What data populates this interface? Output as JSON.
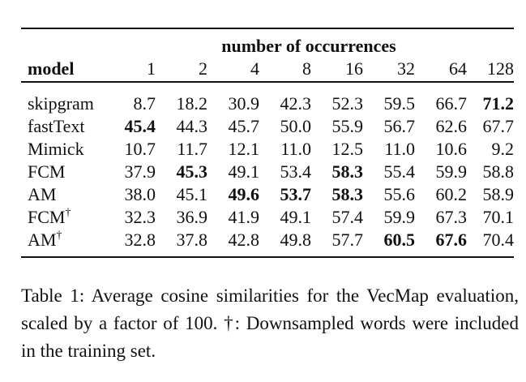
{
  "table": {
    "group_header": "number of occurrences",
    "model_header": "model",
    "columns": [
      "1",
      "2",
      "4",
      "8",
      "16",
      "32",
      "64",
      "128"
    ],
    "rows": [
      {
        "model": "skipgram",
        "dagger": "",
        "values": [
          "8.7",
          "18.2",
          "30.9",
          "42.3",
          "52.3",
          "59.5",
          "66.7",
          "71.2"
        ],
        "bold": [
          false,
          false,
          false,
          false,
          false,
          false,
          false,
          true
        ]
      },
      {
        "model": "fastText",
        "dagger": "",
        "values": [
          "45.4",
          "44.3",
          "45.7",
          "50.0",
          "55.9",
          "56.7",
          "62.6",
          "67.7"
        ],
        "bold": [
          true,
          false,
          false,
          false,
          false,
          false,
          false,
          false
        ]
      },
      {
        "model": "Mimick",
        "dagger": "",
        "values": [
          "10.7",
          "11.7",
          "12.1",
          "11.0",
          "12.5",
          "11.0",
          "10.6",
          "9.2"
        ],
        "bold": [
          false,
          false,
          false,
          false,
          false,
          false,
          false,
          false
        ]
      },
      {
        "model": "FCM",
        "dagger": "",
        "values": [
          "37.9",
          "45.3",
          "49.1",
          "53.4",
          "58.3",
          "55.4",
          "59.9",
          "58.8"
        ],
        "bold": [
          false,
          true,
          false,
          false,
          true,
          false,
          false,
          false
        ]
      },
      {
        "model": "AM",
        "dagger": "",
        "values": [
          "38.0",
          "45.1",
          "49.6",
          "53.7",
          "58.3",
          "55.6",
          "60.2",
          "58.9"
        ],
        "bold": [
          false,
          false,
          true,
          true,
          true,
          false,
          false,
          false
        ]
      },
      {
        "model": "FCM",
        "dagger": "†",
        "values": [
          "32.3",
          "36.9",
          "41.9",
          "49.1",
          "57.4",
          "59.9",
          "67.3",
          "70.1"
        ],
        "bold": [
          false,
          false,
          false,
          false,
          false,
          false,
          false,
          false
        ]
      },
      {
        "model": "AM",
        "dagger": "†",
        "values": [
          "32.8",
          "37.8",
          "42.8",
          "49.8",
          "57.7",
          "60.5",
          "67.6",
          "70.4"
        ],
        "bold": [
          false,
          false,
          false,
          false,
          false,
          true,
          true,
          false
        ]
      }
    ]
  },
  "caption": "Table 1: Average cosine similarities for the VecMap evaluation, scaled by a factor of 100. †: Downsampled words were included in the training set."
}
